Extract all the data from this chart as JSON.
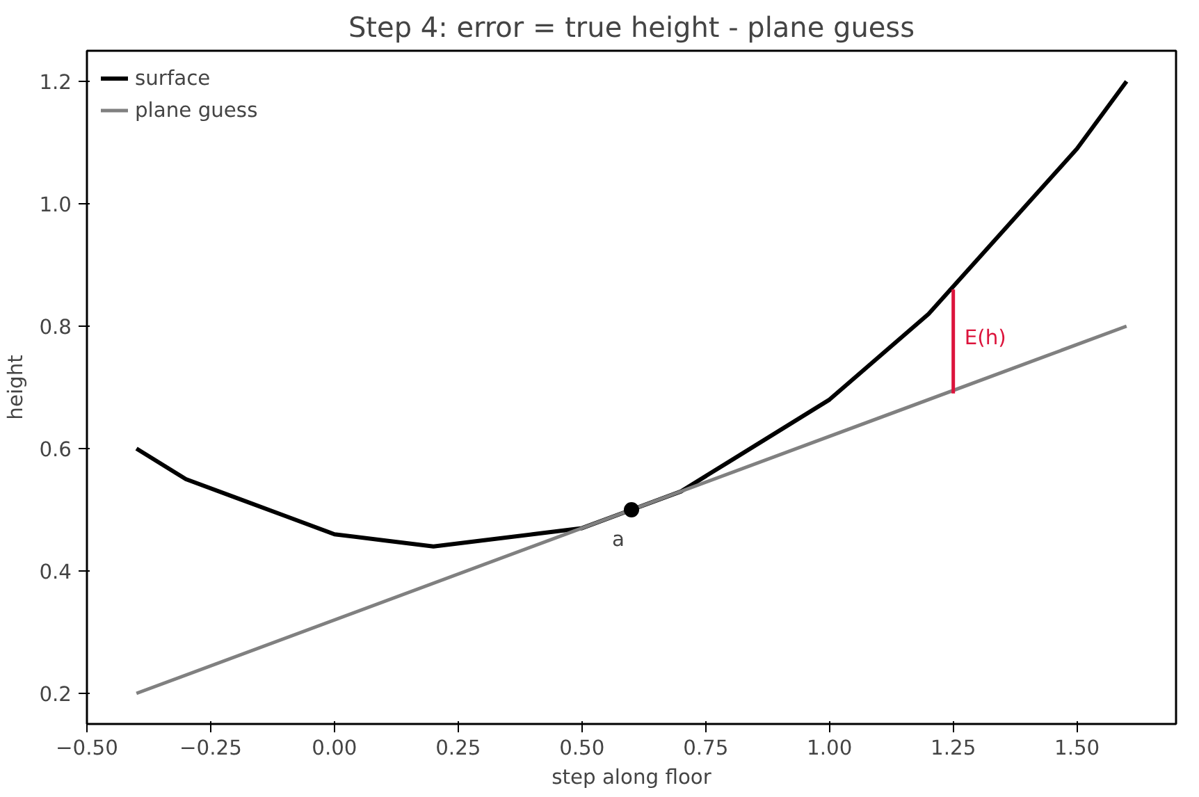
{
  "chart_data": {
    "type": "line",
    "title": "Step 4: error = true height - plane guess",
    "xlabel": "step along floor",
    "ylabel": "height",
    "xlim": [
      -0.5,
      1.7
    ],
    "ylim": [
      0.15,
      1.25
    ],
    "xticks": [
      {
        "value": -0.5,
        "label": "−0.50"
      },
      {
        "value": -0.25,
        "label": "−0.25"
      },
      {
        "value": 0,
        "label": "0.00"
      },
      {
        "value": 0.25,
        "label": "0.25"
      },
      {
        "value": 0.5,
        "label": "0.50"
      },
      {
        "value": 0.75,
        "label": "0.75"
      },
      {
        "value": 1,
        "label": "1.00"
      },
      {
        "value": 1.25,
        "label": "1.25"
      },
      {
        "value": 1.5,
        "label": "1.50"
      }
    ],
    "yticks": [
      {
        "value": 0.2,
        "label": "0.2"
      },
      {
        "value": 0.4,
        "label": "0.4"
      },
      {
        "value": 0.6,
        "label": "0.6"
      },
      {
        "value": 0.8,
        "label": "0.8"
      },
      {
        "value": 1,
        "label": "1.0"
      },
      {
        "value": 1.2,
        "label": "1.2"
      }
    ],
    "grid": false,
    "legend": "top left",
    "series": [
      {
        "name": "surface",
        "color": "#000000",
        "x": [
          -0.4,
          -0.3,
          -0.2,
          -0.1,
          0,
          0.1,
          0.2,
          0.3,
          0.4,
          0.5,
          0.6,
          0.7,
          0.8,
          0.9,
          1.0,
          1.1,
          1.2,
          1.3,
          1.4,
          1.5,
          1.6
        ],
        "values": [
          0.6,
          0.55,
          0.52,
          0.49,
          0.46,
          0.45,
          0.44,
          0.45,
          0.46,
          0.47,
          0.5,
          0.53,
          0.58,
          0.63,
          0.68,
          0.75,
          0.82,
          0.91,
          1.0,
          1.09,
          1.2
        ]
      },
      {
        "name": "plane guess",
        "color": "#808080",
        "x": [
          -0.4,
          1.6
        ],
        "values": [
          0.2,
          0.8
        ]
      },
      {
        "color": "#dc143c",
        "x": [
          1.25,
          1.25
        ],
        "values": [
          0.69,
          0.86
        ]
      },
      {
        "type": "scatter",
        "color": "#000000",
        "marker": "circle",
        "x": [
          0.6
        ],
        "values": [
          0.5
        ]
      }
    ],
    "annotations": [
      {
        "text": "a",
        "x": 0.6,
        "y": 0.5
      },
      {
        "text": "E(h)",
        "x": 1.25,
        "y": 0.78
      }
    ]
  }
}
